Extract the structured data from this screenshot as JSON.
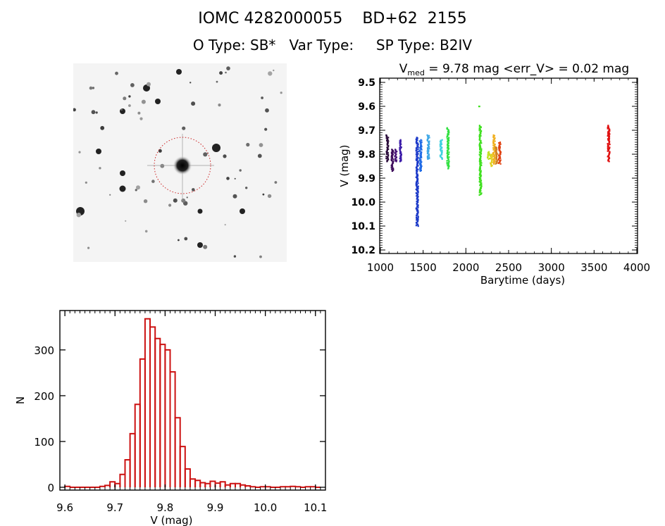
{
  "header": {
    "title": "IOMC 4282000055    BD+62  2155",
    "subtitle": "O Type: SB*   Var Type:     SP Type: B2IV"
  },
  "finder_chart": {
    "description": "DSS finder image, negative grayscale, target circled",
    "circle_color": "#cc2222"
  },
  "chart_data": [
    {
      "type": "scatter",
      "name": "light-curve",
      "title_main": "V",
      "title_sub": "med",
      "title_rest": " = 9.78 mag <err_V> = 0.02 mag",
      "xlabel": "Barytime (days)",
      "ylabel": "V (mag)",
      "xlim": [
        1000,
        4000
      ],
      "ylim": [
        10.2,
        9.5
      ],
      "y_inverted": true,
      "xticks": [
        1000,
        1500,
        2000,
        2500,
        3000,
        3500,
        4000
      ],
      "xtick_labels": [
        "1000",
        "1500",
        "2000",
        "2500",
        "3000",
        "3500",
        "4000"
      ],
      "yticks": [
        9.5,
        9.6,
        9.7,
        9.8,
        9.9,
        10.0,
        10.1,
        10.2
      ],
      "ytick_labels": [
        "9.5",
        "9.6",
        "9.7",
        "9.8",
        "9.9",
        "10.0",
        "10.1",
        "10.2"
      ],
      "grid": false,
      "clusters": [
        {
          "t": 1080,
          "vmin": 9.72,
          "vmax": 9.83,
          "color": "#2a0a3a"
        },
        {
          "t": 1140,
          "vmin": 9.78,
          "vmax": 9.87,
          "color": "#3c0a5a"
        },
        {
          "t": 1180,
          "vmin": 9.78,
          "vmax": 9.83,
          "color": "#4a1478"
        },
        {
          "t": 1235,
          "vmin": 9.74,
          "vmax": 9.83,
          "color": "#3a1aa8"
        },
        {
          "t": 1430,
          "vmin": 9.73,
          "vmax": 10.1,
          "color": "#1a38c8"
        },
        {
          "t": 1470,
          "vmin": 9.74,
          "vmax": 9.87,
          "color": "#1e6ae6"
        },
        {
          "t": 1560,
          "vmin": 9.72,
          "vmax": 9.82,
          "color": "#3aa6e6"
        },
        {
          "t": 1710,
          "vmin": 9.74,
          "vmax": 9.82,
          "color": "#40d0e0"
        },
        {
          "t": 1790,
          "vmin": 9.69,
          "vmax": 9.86,
          "color": "#30e040"
        },
        {
          "t": 2170,
          "vmin": 9.68,
          "vmax": 9.97,
          "color": "#40e020"
        },
        {
          "t": 2165,
          "vmin": 9.6,
          "vmax": 9.6,
          "color": "#40e020"
        },
        {
          "t": 2265,
          "vmin": 9.79,
          "vmax": 9.82,
          "color": "#c0e020"
        },
        {
          "t": 2295,
          "vmin": 9.8,
          "vmax": 9.85,
          "color": "#e0d020"
        },
        {
          "t": 2330,
          "vmin": 9.72,
          "vmax": 9.84,
          "color": "#f0b020"
        },
        {
          "t": 2360,
          "vmin": 9.77,
          "vmax": 9.84,
          "color": "#d08020"
        },
        {
          "t": 2395,
          "vmin": 9.75,
          "vmax": 9.84,
          "color": "#e04010"
        },
        {
          "t": 3670,
          "vmin": 9.68,
          "vmax": 9.83,
          "color": "#e01010"
        }
      ]
    },
    {
      "type": "bar",
      "name": "histogram",
      "xlabel": "V (mag)",
      "ylabel": "N",
      "xlim": [
        9.59,
        10.12
      ],
      "ylim": [
        0,
        386
      ],
      "xticks": [
        9.6,
        9.7,
        9.8,
        9.9,
        10.0,
        10.1
      ],
      "xtick_labels": [
        "9.6",
        "9.7",
        "9.8",
        "9.9",
        "10.0",
        "10.1"
      ],
      "yticks": [
        0,
        100,
        200,
        300
      ],
      "ytick_labels": [
        "0",
        "100",
        "200",
        "300"
      ],
      "bin_width": 0.01,
      "bar_color": "#cc1111",
      "bin_starts": [
        9.6,
        9.61,
        9.62,
        9.63,
        9.64,
        9.65,
        9.66,
        9.67,
        9.68,
        9.69,
        9.7,
        9.71,
        9.72,
        9.73,
        9.74,
        9.75,
        9.76,
        9.77,
        9.78,
        9.79,
        9.8,
        9.81,
        9.82,
        9.83,
        9.84,
        9.85,
        9.86,
        9.87,
        9.88,
        9.89,
        9.9,
        9.91,
        9.92,
        9.93,
        9.94,
        9.95,
        9.96,
        9.97,
        9.98,
        9.99,
        10.0,
        10.01,
        10.02,
        10.03,
        10.04,
        10.05,
        10.06,
        10.07,
        10.08,
        10.09,
        10.1
      ],
      "values": [
        2,
        0,
        0,
        0,
        0,
        0,
        0,
        2,
        4,
        12,
        8,
        28,
        60,
        117,
        181,
        280,
        368,
        350,
        325,
        312,
        300,
        252,
        152,
        89,
        40,
        18,
        15,
        10,
        8,
        13,
        9,
        12,
        5,
        8,
        8,
        5,
        3,
        1,
        0,
        1,
        1,
        0,
        0,
        1,
        1,
        2,
        1,
        0,
        1,
        1,
        0
      ]
    }
  ]
}
